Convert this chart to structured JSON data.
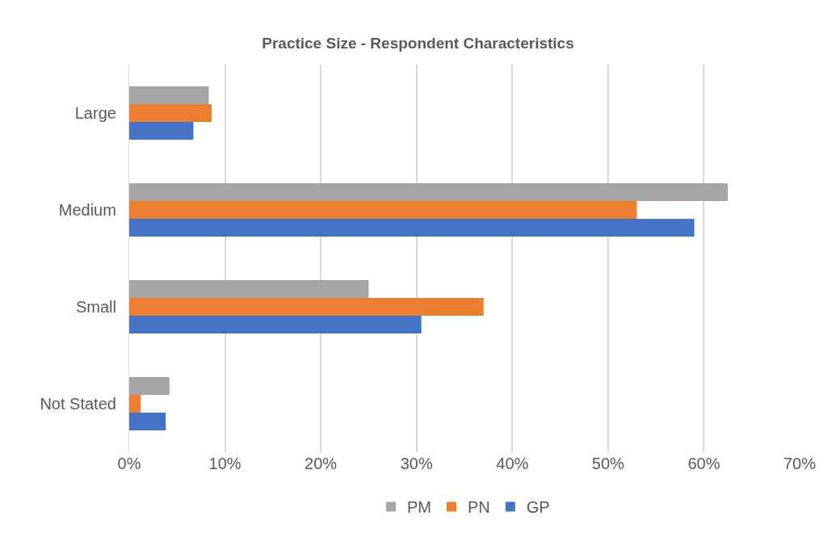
{
  "chart_data": {
    "type": "bar",
    "orientation": "horizontal",
    "title": "Practice Size - Respondent Characteristics",
    "categories": [
      "Large",
      "Medium",
      "Small",
      "Not Stated"
    ],
    "series": [
      {
        "name": "PM",
        "color": "#a5a5a5",
        "values": [
          8.3,
          62.5,
          25.0,
          4.2
        ]
      },
      {
        "name": "PN",
        "color": "#ed7d31",
        "values": [
          8.6,
          53.0,
          37.0,
          1.2
        ]
      },
      {
        "name": "GP",
        "color": "#4472c4",
        "values": [
          6.7,
          59.0,
          30.5,
          3.8
        ]
      }
    ],
    "xlim": [
      0,
      70
    ],
    "xticks": [
      {
        "value": 0,
        "label": "0%"
      },
      {
        "value": 10,
        "label": "10%"
      },
      {
        "value": 20,
        "label": "20%"
      },
      {
        "value": 30,
        "label": "30%"
      },
      {
        "value": 40,
        "label": "40%"
      },
      {
        "value": 50,
        "label": "50%"
      },
      {
        "value": 60,
        "label": "60%"
      },
      {
        "value": 70,
        "label": "70%"
      }
    ],
    "grid": "x",
    "legend": "bottom"
  }
}
